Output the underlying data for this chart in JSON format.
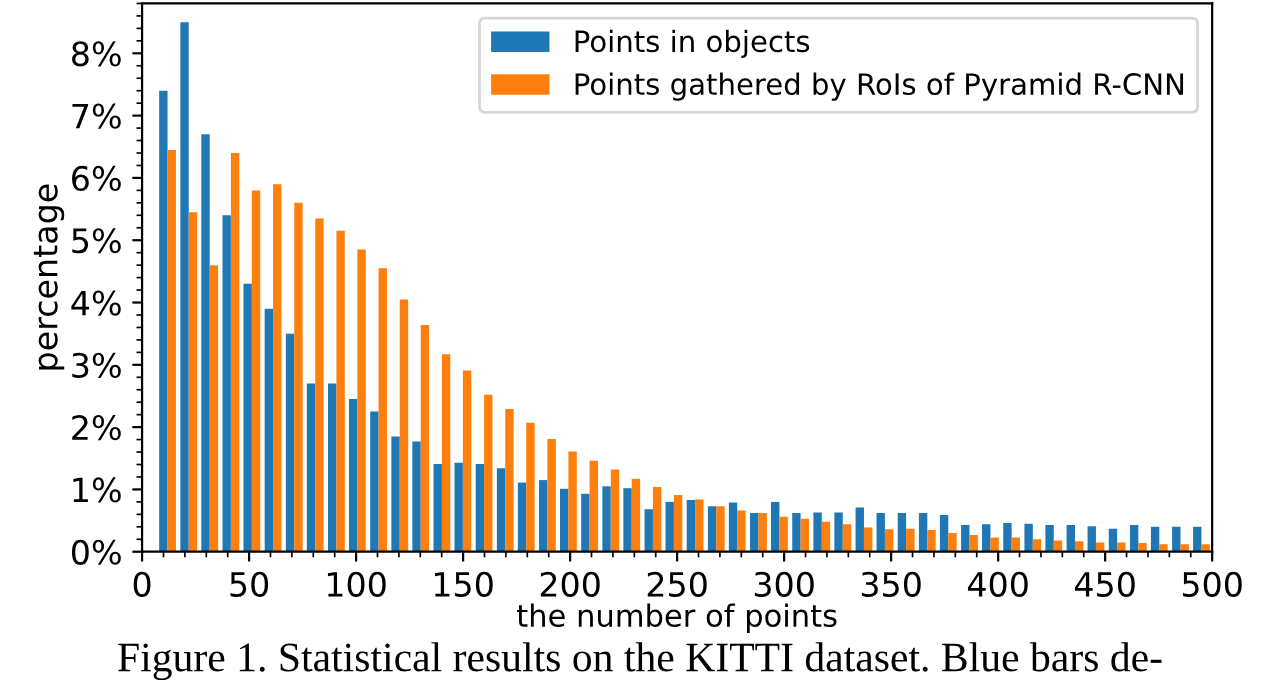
{
  "chart_data": {
    "type": "bar",
    "x": [
      11.9,
      21.8,
      31.6,
      41.5,
      51.3,
      61.2,
      71.1,
      80.9,
      90.8,
      100.6,
      110.5,
      120.4,
      130.2,
      140.1,
      149.9,
      159.8,
      169.7,
      179.5,
      189.4,
      199.2,
      209.1,
      219.0,
      228.8,
      238.7,
      248.5,
      258.4,
      268.3,
      278.1,
      288.0,
      297.8,
      307.7,
      317.6,
      327.4,
      337.3,
      347.1,
      357.0,
      366.9,
      376.7,
      386.6,
      396.4,
      406.3,
      416.2,
      426.0,
      435.9,
      445.7,
      455.6,
      465.5,
      475.3,
      485.2,
      495.0
    ],
    "series": [
      {
        "name": "Points in objects",
        "color": "#1f77b4",
        "values": [
          7.4,
          8.5,
          6.7,
          5.4,
          4.3,
          3.9,
          3.5,
          2.7,
          2.7,
          2.45,
          2.25,
          1.85,
          1.77,
          1.41,
          1.43,
          1.41,
          1.34,
          1.11,
          1.15,
          1.01,
          0.93,
          1.05,
          1.02,
          0.68,
          0.8,
          0.83,
          0.73,
          0.79,
          0.62,
          0.8,
          0.62,
          0.63,
          0.63,
          0.71,
          0.62,
          0.62,
          0.62,
          0.59,
          0.43,
          0.44,
          0.46,
          0.45,
          0.43,
          0.43,
          0.41,
          0.37,
          0.43,
          0.4,
          0.4,
          0.4
        ]
      },
      {
        "name": "Points gathered by RoIs of Pyramid R-CNN",
        "color": "#ff7f0e",
        "values": [
          6.45,
          5.45,
          4.6,
          6.4,
          5.8,
          5.9,
          5.6,
          5.35,
          5.15,
          4.85,
          4.55,
          4.05,
          3.64,
          3.17,
          2.91,
          2.52,
          2.29,
          2.07,
          1.81,
          1.61,
          1.46,
          1.32,
          1.17,
          1.04,
          0.91,
          0.84,
          0.73,
          0.66,
          0.62,
          0.56,
          0.53,
          0.48,
          0.44,
          0.39,
          0.36,
          0.37,
          0.35,
          0.3,
          0.27,
          0.23,
          0.23,
          0.2,
          0.18,
          0.17,
          0.15,
          0.15,
          0.14,
          0.12,
          0.12,
          0.12
        ]
      }
    ],
    "xlabel": "the number of points",
    "ylabel": "percentage",
    "xlim": [
      0,
      500
    ],
    "xticks": [
      0,
      50,
      100,
      150,
      200,
      250,
      300,
      350,
      400,
      450,
      500
    ],
    "ylim": [
      0,
      8.8
    ],
    "yticks": [
      {
        "value": 0,
        "label": "0%"
      },
      {
        "value": 1,
        "label": "1%"
      },
      {
        "value": 2,
        "label": "2%"
      },
      {
        "value": 3,
        "label": "3%"
      },
      {
        "value": 4,
        "label": "4%"
      },
      {
        "value": 5,
        "label": "5%"
      },
      {
        "value": 6,
        "label": "6%"
      },
      {
        "value": 7,
        "label": "7%"
      },
      {
        "value": 8,
        "label": "8%"
      }
    ],
    "legend": "top right",
    "grid": false,
    "annotations": [
      "Figure 1. Statistical results on the KITTI dataset. Blue bars de-"
    ]
  }
}
